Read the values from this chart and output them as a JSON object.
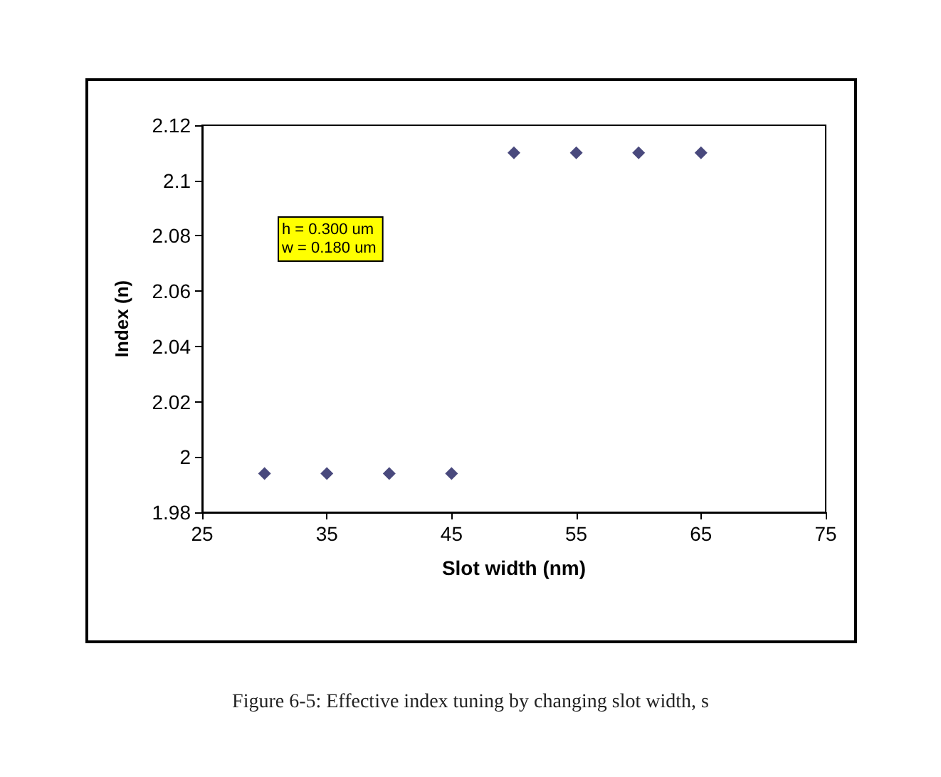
{
  "chart_data": {
    "type": "scatter",
    "xlabel": "Slot width (nm)",
    "ylabel": "Index (n)",
    "x": [
      30,
      35,
      40,
      45,
      50,
      55,
      60,
      65
    ],
    "values": [
      1.994,
      1.994,
      1.994,
      1.994,
      2.11,
      2.11,
      2.11,
      2.11
    ],
    "color": "#1c1c5c",
    "marker": "diamond",
    "grid": false,
    "xlim": [
      25,
      75
    ],
    "xticks": [
      25,
      35,
      45,
      55,
      65,
      75
    ],
    "ylim": [
      1.98,
      2.12
    ],
    "yticks": [
      1.98,
      2,
      2.02,
      2.04,
      2.06,
      2.08,
      2.1,
      2.12
    ],
    "annotations": [
      "h = 0.300 um\nw = 0.180 um",
      "Figure 6-5: Effective index tuning by changing slot width, s"
    ]
  }
}
